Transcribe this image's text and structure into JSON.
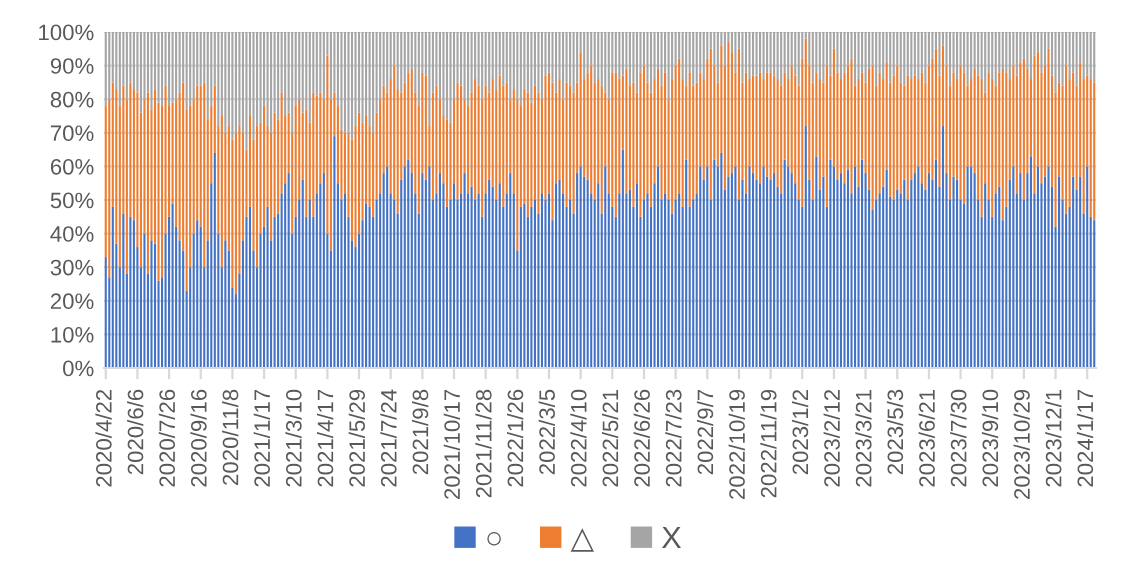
{
  "chart_data": {
    "type": "bar",
    "stacked": true,
    "grid": "y",
    "legend": "bottom",
    "ylim": [
      0,
      100
    ],
    "yticks": [
      {
        "value": 0,
        "label": "0%"
      },
      {
        "value": 10,
        "label": "10%"
      },
      {
        "value": 20,
        "label": "20%"
      },
      {
        "value": 30,
        "label": "30%"
      },
      {
        "value": 40,
        "label": "40%"
      },
      {
        "value": 50,
        "label": "50%"
      },
      {
        "value": 60,
        "label": "60%"
      },
      {
        "value": 70,
        "label": "70%"
      },
      {
        "value": 80,
        "label": "80%"
      },
      {
        "value": 90,
        "label": "90%"
      },
      {
        "value": 100,
        "label": "100%"
      }
    ],
    "categories": [
      "2020/4/22",
      null,
      null,
      null,
      null,
      null,
      null,
      null,
      null,
      "2020/6/6",
      null,
      null,
      null,
      null,
      null,
      null,
      null,
      null,
      "2020/7/26",
      null,
      null,
      null,
      null,
      null,
      null,
      null,
      null,
      "2020/9/16",
      null,
      null,
      null,
      null,
      null,
      null,
      null,
      null,
      "2020/11/8",
      null,
      null,
      null,
      null,
      null,
      null,
      null,
      null,
      "2021/1/17",
      null,
      null,
      null,
      null,
      null,
      null,
      null,
      null,
      "2021/3/10",
      null,
      null,
      null,
      null,
      null,
      null,
      null,
      null,
      "2021/4/17",
      null,
      null,
      null,
      null,
      null,
      null,
      null,
      null,
      "2021/5/29",
      null,
      null,
      null,
      null,
      null,
      null,
      null,
      null,
      "2021/7/24",
      null,
      null,
      null,
      null,
      null,
      null,
      null,
      null,
      "2021/9/8",
      null,
      null,
      null,
      null,
      null,
      null,
      null,
      null,
      "2021/10/17",
      null,
      null,
      null,
      null,
      null,
      null,
      null,
      null,
      "2021/11/28",
      null,
      null,
      null,
      null,
      null,
      null,
      null,
      null,
      "2022/1/26",
      null,
      null,
      null,
      null,
      null,
      null,
      null,
      null,
      "2022/3/5",
      null,
      null,
      null,
      null,
      null,
      null,
      null,
      null,
      "2022/4/10",
      null,
      null,
      null,
      null,
      null,
      null,
      null,
      null,
      "2022/5/21",
      null,
      null,
      null,
      null,
      null,
      null,
      null,
      null,
      "2022/6/26",
      null,
      null,
      null,
      null,
      null,
      null,
      null,
      null,
      "2022/7/23",
      null,
      null,
      null,
      null,
      null,
      null,
      null,
      null,
      "2022/9/7",
      null,
      null,
      null,
      null,
      null,
      null,
      null,
      null,
      "2022/10/19",
      null,
      null,
      null,
      null,
      null,
      null,
      null,
      null,
      "2022/11/19",
      null,
      null,
      null,
      null,
      null,
      null,
      null,
      null,
      "2023/1/2",
      null,
      null,
      null,
      null,
      null,
      null,
      null,
      null,
      "2023/2/12",
      null,
      null,
      null,
      null,
      null,
      null,
      null,
      null,
      "2023/3/21",
      null,
      null,
      null,
      null,
      null,
      null,
      null,
      null,
      "2023/5/3",
      null,
      null,
      null,
      null,
      null,
      null,
      null,
      null,
      "2023/6/21",
      null,
      null,
      null,
      null,
      null,
      null,
      null,
      null,
      "2023/7/30",
      null,
      null,
      null,
      null,
      null,
      null,
      null,
      null,
      "2023/9/10",
      null,
      null,
      null,
      null,
      null,
      null,
      null,
      null,
      "2023/10/29",
      null,
      null,
      null,
      null,
      null,
      null,
      null,
      null,
      "2023/12/1",
      null,
      null,
      null,
      null,
      null,
      null,
      null,
      null,
      "2024/1/17",
      null,
      null
    ],
    "series": [
      {
        "name": "○",
        "color": "#4472c4",
        "values": [
          33,
          27,
          48,
          37,
          30,
          46,
          28,
          45,
          44,
          36,
          30,
          40,
          28,
          38,
          37,
          26,
          27,
          40,
          45,
          49,
          42,
          38,
          35,
          23,
          30,
          40,
          44,
          42,
          30,
          38,
          55,
          64,
          40,
          30,
          38,
          35,
          24,
          22,
          28,
          38,
          45,
          48,
          35,
          30,
          40,
          42,
          48,
          38,
          45,
          46,
          52,
          55,
          58,
          40,
          45,
          50,
          56,
          45,
          50,
          45,
          52,
          55,
          58,
          40,
          35,
          69,
          55,
          50,
          52,
          45,
          38,
          36,
          40,
          44,
          49,
          48,
          45,
          50,
          52,
          58,
          60,
          52,
          50,
          46,
          56,
          60,
          62,
          58,
          52,
          46,
          58,
          56,
          60,
          50,
          52,
          58,
          55,
          48,
          50,
          55,
          50,
          52,
          58,
          52,
          54,
          50,
          52,
          45,
          52,
          56,
          54,
          50,
          55,
          48,
          52,
          58,
          52,
          35,
          48,
          49,
          45,
          48,
          50,
          46,
          52,
          50,
          52,
          44,
          55,
          56,
          52,
          48,
          50,
          46,
          58,
          60,
          57,
          56,
          52,
          50,
          55,
          46,
          60,
          52,
          48,
          45,
          52,
          65,
          52,
          53,
          48,
          55,
          45,
          50,
          52,
          48,
          55,
          60,
          50,
          52,
          50,
          46,
          50,
          52,
          48,
          62,
          48,
          50,
          52,
          60,
          56,
          60,
          50,
          62,
          60,
          64,
          53,
          57,
          58,
          60,
          50,
          56,
          52,
          60,
          58,
          56,
          55,
          60,
          57,
          56,
          58,
          54,
          52,
          62,
          60,
          58,
          55,
          50,
          48,
          72,
          56,
          50,
          63,
          53,
          57,
          48,
          62,
          60,
          56,
          58,
          55,
          59,
          52,
          60,
          54,
          62,
          58,
          53,
          47,
          50,
          52,
          54,
          59,
          51,
          50,
          53,
          52,
          56,
          50,
          56,
          58,
          60,
          55,
          53,
          58,
          56,
          62,
          54,
          72,
          58,
          50,
          57,
          56,
          50,
          49,
          60,
          60,
          58,
          50,
          45,
          55,
          50,
          45,
          52,
          54,
          44,
          48,
          56,
          60,
          52,
          58,
          50,
          58,
          63,
          52,
          60,
          55,
          57,
          60,
          54,
          42,
          57,
          50,
          46,
          48,
          57,
          53,
          57,
          46,
          60,
          45,
          44
        ]
      },
      {
        "name": "△",
        "color": "#ed7d31",
        "values": [
          45,
          53,
          37,
          46,
          48,
          38,
          52,
          40,
          39,
          46,
          46,
          40,
          54,
          39,
          46,
          53,
          51,
          44,
          33,
          30,
          38,
          44,
          50,
          54,
          48,
          40,
          40,
          42,
          55,
          36,
          23,
          20,
          32,
          45,
          32,
          37,
          44,
          48,
          44,
          32,
          20,
          27,
          33,
          42,
          33,
          36,
          24,
          32,
          31,
          28,
          30,
          20,
          18,
          30,
          33,
          30,
          20,
          32,
          23,
          37,
          29,
          27,
          22,
          53,
          45,
          13,
          23,
          21,
          18,
          25,
          30,
          36,
          36,
          29,
          26,
          24,
          25,
          26,
          28,
          26,
          22,
          34,
          40,
          37,
          26,
          25,
          26,
          31,
          30,
          32,
          30,
          31,
          12,
          32,
          32,
          22,
          20,
          26,
          23,
          25,
          35,
          32,
          22,
          26,
          28,
          36,
          32,
          35,
          32,
          26,
          32,
          33,
          32,
          36,
          33,
          22,
          31,
          45,
          30,
          34,
          37,
          31,
          34,
          36,
          28,
          37,
          36,
          41,
          27,
          30,
          28,
          37,
          34,
          36,
          27,
          34,
          29,
          32,
          38,
          35,
          31,
          38,
          22,
          28,
          40,
          43,
          34,
          22,
          37,
          31,
          37,
          27,
          43,
          40,
          33,
          34,
          31,
          29,
          34,
          36,
          30,
          40,
          40,
          40,
          38,
          22,
          40,
          34,
          33,
          28,
          30,
          32,
          45,
          28,
          25,
          32,
          37,
          40,
          36,
          28,
          45,
          29,
          36,
          26,
          29,
          31,
          33,
          26,
          31,
          32,
          29,
          32,
          32,
          26,
          26,
          32,
          32,
          34,
          44,
          26,
          34,
          35,
          25,
          33,
          28,
          42,
          25,
          35,
          32,
          28,
          33,
          31,
          40,
          24,
          32,
          26,
          27,
          36,
          43,
          34,
          36,
          32,
          32,
          34,
          37,
          37,
          33,
          28,
          37,
          30,
          29,
          26,
          33,
          32,
          32,
          36,
          33,
          33,
          24,
          32,
          34,
          31,
          30,
          40,
          39,
          24,
          26,
          31,
          37,
          41,
          27,
          38,
          41,
          32,
          34,
          45,
          40,
          30,
          30,
          35,
          33,
          42,
          31,
          23,
          41,
          34,
          33,
          33,
          35,
          33,
          40,
          28,
          34,
          44,
          38,
          31,
          31,
          34,
          40,
          27,
          41,
          41
        ]
      },
      {
        "name": "X",
        "color": "#a5a5a5",
        "values": [
          22,
          20,
          15,
          17,
          22,
          16,
          20,
          15,
          17,
          18,
          24,
          20,
          18,
          23,
          17,
          21,
          22,
          16,
          22,
          21,
          20,
          18,
          15,
          23,
          22,
          20,
          16,
          16,
          15,
          26,
          22,
          16,
          28,
          25,
          30,
          28,
          32,
          30,
          28,
          30,
          35,
          25,
          32,
          28,
          27,
          22,
          28,
          30,
          24,
          26,
          18,
          25,
          24,
          30,
          22,
          20,
          24,
          23,
          27,
          18,
          19,
          18,
          20,
          7,
          20,
          18,
          22,
          29,
          30,
          30,
          32,
          28,
          24,
          27,
          25,
          28,
          30,
          24,
          20,
          16,
          18,
          14,
          10,
          17,
          18,
          15,
          12,
          11,
          18,
          22,
          12,
          13,
          28,
          18,
          16,
          20,
          25,
          26,
          27,
          20,
          15,
          16,
          20,
          22,
          18,
          14,
          16,
          20,
          16,
          18,
          14,
          17,
          13,
          16,
          15,
          20,
          17,
          20,
          22,
          17,
          18,
          21,
          16,
          18,
          20,
          13,
          12,
          15,
          18,
          14,
          20,
          15,
          16,
          18,
          15,
          6,
          14,
          12,
          10,
          15,
          14,
          16,
          18,
          20,
          12,
          12,
          14,
          13,
          11,
          16,
          15,
          18,
          12,
          10,
          15,
          18,
          14,
          11,
          16,
          12,
          20,
          14,
          10,
          8,
          14,
          16,
          12,
          16,
          15,
          12,
          14,
          8,
          5,
          10,
          15,
          4,
          10,
          3,
          6,
          12,
          5,
          15,
          12,
          14,
          13,
          13,
          12,
          14,
          12,
          12,
          13,
          14,
          16,
          12,
          14,
          10,
          13,
          16,
          8,
          2,
          10,
          15,
          12,
          14,
          15,
          10,
          13,
          5,
          12,
          14,
          12,
          10,
          8,
          16,
          14,
          12,
          15,
          11,
          10,
          16,
          12,
          14,
          9,
          15,
          13,
          10,
          15,
          16,
          13,
          14,
          13,
          14,
          12,
          15,
          10,
          8,
          5,
          13,
          4,
          10,
          16,
          12,
          14,
          10,
          12,
          16,
          14,
          11,
          13,
          14,
          18,
          12,
          14,
          16,
          12,
          11,
          12,
          14,
          10,
          13,
          9,
          8,
          11,
          14,
          7,
          6,
          12,
          10,
          5,
          13,
          18,
          15,
          16,
          10,
          14,
          12,
          16,
          9,
          14,
          13,
          14,
          15
        ]
      }
    ]
  }
}
